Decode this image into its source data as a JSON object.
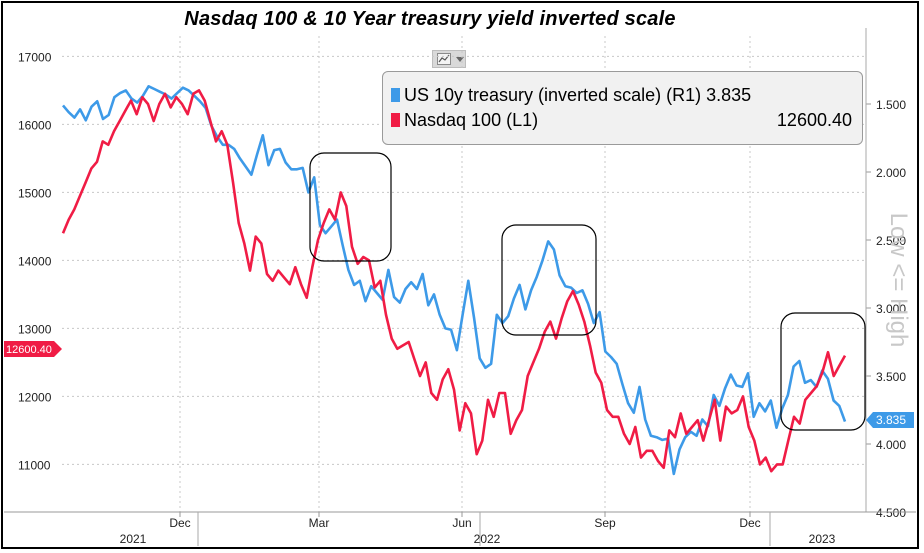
{
  "title": "Nasdaq 100 & 10 Year treasury yield inverted scale",
  "legend": {
    "treasury": {
      "label": "US 10y treasury (inverted scale) (R1)",
      "value": "3.835"
    },
    "nasdaq": {
      "label": "Nasdaq 100 (L1)",
      "value": "12600.40"
    }
  },
  "right_axis_title": "Low <= High",
  "toolbar": {
    "chart_type_icon": "line-chart-icon",
    "dropdown_icon": "chevron-down-icon"
  },
  "colors": {
    "treasury": "#3d9ae8",
    "nasdaq": "#f01c45",
    "grid": "#c8c8c8"
  },
  "chart_data": {
    "type": "line",
    "title": "Nasdaq 100 & 10 Year treasury yield inverted scale",
    "left_axis": {
      "ticks": [
        11000,
        12000,
        13000,
        14000,
        15000,
        16000,
        17000
      ],
      "min": 10300,
      "max": 17300
    },
    "right_axis": {
      "ticks": [
        "1.500",
        "2.000",
        "2.500",
        "3.000",
        "3.500",
        "4.000",
        "4.500"
      ],
      "min": 1.0,
      "max": 4.5,
      "inverted": true
    },
    "x_axis": {
      "month_labels": [
        "Dec",
        "Mar",
        "Jun",
        "Sep",
        "Dec"
      ],
      "year_labels": [
        "2021",
        "2022",
        "2023"
      ]
    },
    "badges": {
      "left": "12600.40",
      "right": "3.835"
    },
    "series": [
      {
        "name": "US 10y treasury (inverted scale) (R1)",
        "axis": "right",
        "color": "#3d9ae8",
        "values": [
          1.51,
          1.56,
          1.6,
          1.54,
          1.62,
          1.52,
          1.48,
          1.61,
          1.58,
          1.45,
          1.42,
          1.4,
          1.46,
          1.49,
          1.44,
          1.37,
          1.39,
          1.41,
          1.43,
          1.46,
          1.42,
          1.38,
          1.4,
          1.44,
          1.48,
          1.53,
          1.66,
          1.74,
          1.8,
          1.8,
          1.83,
          1.9,
          1.96,
          2.02,
          1.87,
          1.73,
          1.95,
          1.84,
          1.83,
          1.93,
          1.98,
          1.98,
          1.97,
          2.15,
          2.04,
          2.39,
          2.45,
          2.4,
          2.35,
          2.54,
          2.72,
          2.83,
          2.8,
          2.95,
          2.84,
          2.89,
          2.94,
          2.72,
          2.92,
          2.96,
          2.86,
          2.81,
          2.86,
          2.75,
          2.98,
          2.9,
          3.05,
          3.15,
          3.16,
          3.31,
          3.05,
          2.8,
          3.07,
          3.37,
          3.44,
          3.41,
          3.05,
          3.11,
          3.06,
          2.93,
          2.83,
          3.01,
          2.87,
          2.77,
          2.65,
          2.51,
          2.57,
          2.76,
          2.84,
          2.85,
          2.89,
          2.87,
          2.97,
          3.11,
          3.03,
          3.32,
          3.36,
          3.41,
          3.56,
          3.7,
          3.77,
          3.58,
          3.82,
          3.94,
          3.95,
          3.97,
          3.96,
          4.22,
          4.04,
          3.95,
          3.91,
          3.94,
          3.82,
          3.87,
          3.64,
          3.72,
          3.59,
          3.49,
          3.57,
          3.58,
          3.48,
          3.8,
          3.7,
          3.76,
          3.68,
          3.88,
          3.74,
          3.64,
          3.43,
          3.39,
          3.55,
          3.53,
          3.58,
          3.46,
          3.52,
          3.68,
          3.72,
          3.835
        ]
      },
      {
        "name": "Nasdaq 100 (L1)",
        "axis": "left",
        "color": "#f01c45",
        "values": [
          14400,
          14600,
          14750,
          14950,
          15150,
          15350,
          15450,
          15750,
          15700,
          15900,
          16050,
          16200,
          16350,
          16150,
          16400,
          16300,
          16050,
          16300,
          16450,
          16250,
          16400,
          16300,
          16150,
          16450,
          16500,
          16350,
          16050,
          15750,
          15900,
          15700,
          15150,
          14550,
          14250,
          13850,
          14350,
          14250,
          13800,
          13700,
          13850,
          13750,
          13650,
          13900,
          13650,
          13450,
          13900,
          14300,
          14550,
          14750,
          14600,
          15000,
          14800,
          14200,
          13950,
          14050,
          14000,
          13600,
          13700,
          13200,
          12850,
          12700,
          12750,
          12800,
          12550,
          12300,
          12500,
          12050,
          11950,
          12250,
          12400,
          12100,
          11500,
          11900,
          11750,
          11150,
          11350,
          11950,
          11700,
          12050,
          12050,
          11450,
          11650,
          11800,
          12300,
          12500,
          12700,
          12950,
          13100,
          12850,
          13150,
          13400,
          13550,
          13350,
          13100,
          12750,
          12350,
          12200,
          11800,
          11700,
          11700,
          11450,
          11300,
          11550,
          11100,
          11200,
          11200,
          11050,
          10950,
          11500,
          11400,
          11750,
          11450,
          11550,
          11650,
          11350,
          11650,
          11950,
          11350,
          11850,
          11750,
          11800,
          12000,
          11550,
          11350,
          11000,
          11100,
          10900,
          11000,
          11000,
          11350,
          11700,
          11600,
          11950,
          12050,
          12150,
          12350,
          12650,
          12300,
          12450,
          12600.4
        ]
      }
    ]
  }
}
